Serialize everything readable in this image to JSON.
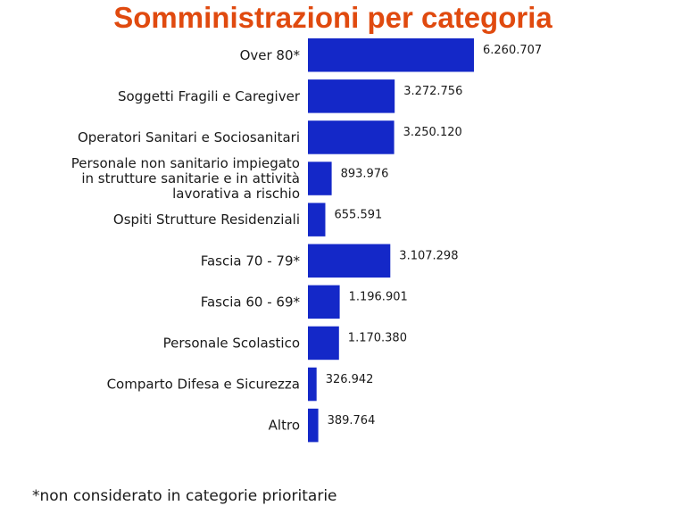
{
  "title": "Somministrazioni per categoria",
  "footnote": "*non considerato in categorie prioritarie",
  "colors": {
    "title": "#e04a0f",
    "bar": "#1428c8",
    "text": "#1a1a1a"
  },
  "chart_data": {
    "type": "bar",
    "orientation": "horizontal",
    "title": "Somministrazioni per categoria",
    "categories": [
      [
        "Over 80*"
      ],
      [
        "Soggetti Fragili e Caregiver"
      ],
      [
        "Operatori Sanitari e Sociosanitari"
      ],
      [
        "Personale non sanitario impiegato",
        "in strutture sanitarie e in attività",
        "lavorativa a rischio"
      ],
      [
        "Ospiti Strutture Residenziali"
      ],
      [
        "Fascia 70 - 79*"
      ],
      [
        "Fascia 60 - 69*"
      ],
      [
        "Personale Scolastico"
      ],
      [
        "Comparto Difesa e Sicurezza"
      ],
      [
        "Altro"
      ]
    ],
    "values": [
      6260707,
      3272756,
      3250120,
      893976,
      655591,
      3107298,
      1196901,
      1170380,
      326942,
      389764
    ],
    "value_labels": [
      "6.260.707",
      "3.272.756",
      "3.250.120",
      "893.976",
      "655.591",
      "3.107.298",
      "1.196.901",
      "1.170.380",
      "326.942",
      "389.764"
    ],
    "xlim": [
      0,
      6260707
    ],
    "grid": false,
    "legend": "none"
  }
}
